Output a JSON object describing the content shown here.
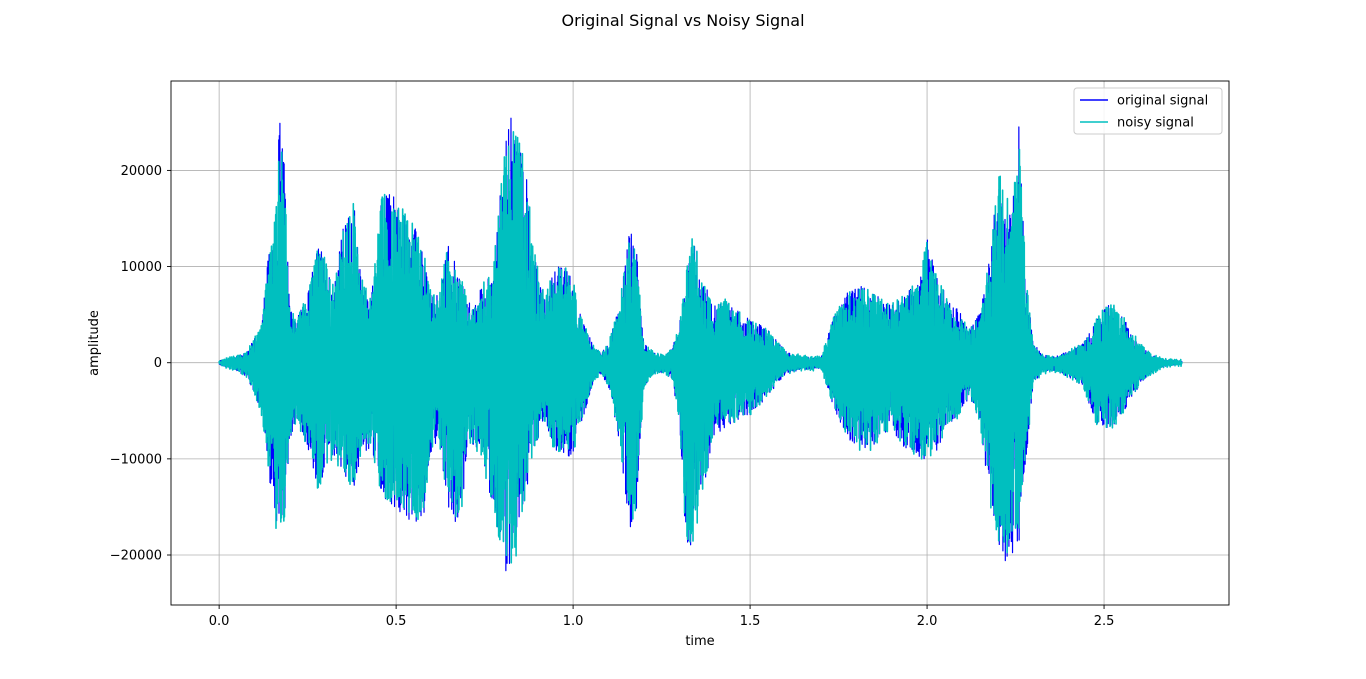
{
  "chart_data": {
    "type": "line",
    "title": "Original Signal vs Noisy Signal",
    "xlabel": "time",
    "ylabel": "amplitude",
    "xlim": [
      -0.136,
      2.853
    ],
    "ylim": [
      -25200,
      29300
    ],
    "xticks": [
      0.0,
      0.5,
      1.0,
      1.5,
      2.0,
      2.5
    ],
    "xtick_labels": [
      "0.0",
      "0.5",
      "1.0",
      "1.5",
      "2.0",
      "2.5"
    ],
    "yticks": [
      -20000,
      -10000,
      0,
      10000,
      20000
    ],
    "ytick_labels": [
      "−20000",
      "−10000",
      "0",
      "10000",
      "20000"
    ],
    "grid": true,
    "legend_position": "top-right",
    "series": [
      {
        "name": "original signal",
        "color": "#0000ff"
      },
      {
        "name": "noisy signal",
        "color": "#00bfbf"
      }
    ],
    "envelope": {
      "x": [
        0.0,
        0.04,
        0.08,
        0.12,
        0.14,
        0.16,
        0.17,
        0.18,
        0.19,
        0.2,
        0.22,
        0.25,
        0.28,
        0.3,
        0.32,
        0.35,
        0.38,
        0.4,
        0.43,
        0.46,
        0.5,
        0.52,
        0.55,
        0.58,
        0.6,
        0.62,
        0.65,
        0.68,
        0.7,
        0.72,
        0.74,
        0.76,
        0.78,
        0.8,
        0.82,
        0.84,
        0.86,
        0.88,
        0.9,
        0.92,
        0.95,
        0.98,
        1.0,
        1.03,
        1.06,
        1.08,
        1.1,
        1.13,
        1.16,
        1.18,
        1.2,
        1.23,
        1.26,
        1.28,
        1.3,
        1.32,
        1.34,
        1.37,
        1.4,
        1.43,
        1.46,
        1.5,
        1.55,
        1.6,
        1.65,
        1.7,
        1.74,
        1.78,
        1.82,
        1.86,
        1.9,
        1.94,
        1.98,
        2.0,
        2.03,
        2.06,
        2.09,
        2.12,
        2.15,
        2.18,
        2.2,
        2.22,
        2.24,
        2.26,
        2.28,
        2.3,
        2.33,
        2.36,
        2.4,
        2.44,
        2.48,
        2.52,
        2.55,
        2.58,
        2.62,
        2.66,
        2.7,
        2.72
      ],
      "upper": [
        200,
        600,
        1200,
        4000,
        11500,
        16000,
        26000,
        25000,
        14000,
        6000,
        5000,
        7000,
        12500,
        11000,
        8000,
        14000,
        17000,
        9000,
        7000,
        17500,
        18000,
        16000,
        14500,
        11000,
        7000,
        7000,
        13000,
        9000,
        7000,
        5500,
        8000,
        9000,
        12000,
        20000,
        26000,
        24000,
        22000,
        16000,
        10000,
        7000,
        10000,
        10000,
        8500,
        4000,
        1600,
        1000,
        2000,
        6000,
        14000,
        12000,
        2000,
        1000,
        800,
        1500,
        4000,
        9500,
        13500,
        8500,
        6000,
        6500,
        5500,
        4500,
        3500,
        1200,
        600,
        500,
        5500,
        7500,
        8000,
        7000,
        6000,
        7500,
        8500,
        13500,
        9000,
        6500,
        5500,
        3500,
        5500,
        12000,
        20000,
        18000,
        16000,
        25000,
        8500,
        2000,
        800,
        600,
        1200,
        2000,
        4500,
        6500,
        5000,
        3000,
        1200,
        400,
        200,
        200
      ],
      "lower": [
        -200,
        -700,
        -1500,
        -5500,
        -11500,
        -17000,
        -21000,
        -20000,
        -13000,
        -8000,
        -6000,
        -9000,
        -13500,
        -11000,
        -10000,
        -12000,
        -13000,
        -10000,
        -9000,
        -14000,
        -15500,
        -16500,
        -17000,
        -15500,
        -9000,
        -8000,
        -15500,
        -18000,
        -9500,
        -8500,
        -10000,
        -13000,
        -16000,
        -21000,
        -22500,
        -20000,
        -15000,
        -11000,
        -8000,
        -6000,
        -9500,
        -10000,
        -9500,
        -5500,
        -1600,
        -1200,
        -2500,
        -8000,
        -17500,
        -15000,
        -2500,
        -1200,
        -1000,
        -2000,
        -6000,
        -19500,
        -19000,
        -13000,
        -7500,
        -7000,
        -6000,
        -5500,
        -3500,
        -1200,
        -700,
        -600,
        -5000,
        -8500,
        -9500,
        -8500,
        -7000,
        -9000,
        -10000,
        -10500,
        -9000,
        -6500,
        -5500,
        -3500,
        -6500,
        -15000,
        -19500,
        -21000,
        -20000,
        -19000,
        -10000,
        -2000,
        -1000,
        -800,
        -1500,
        -2500,
        -6500,
        -7000,
        -5500,
        -3500,
        -1500,
        -500,
        -200,
        -200
      ]
    }
  }
}
